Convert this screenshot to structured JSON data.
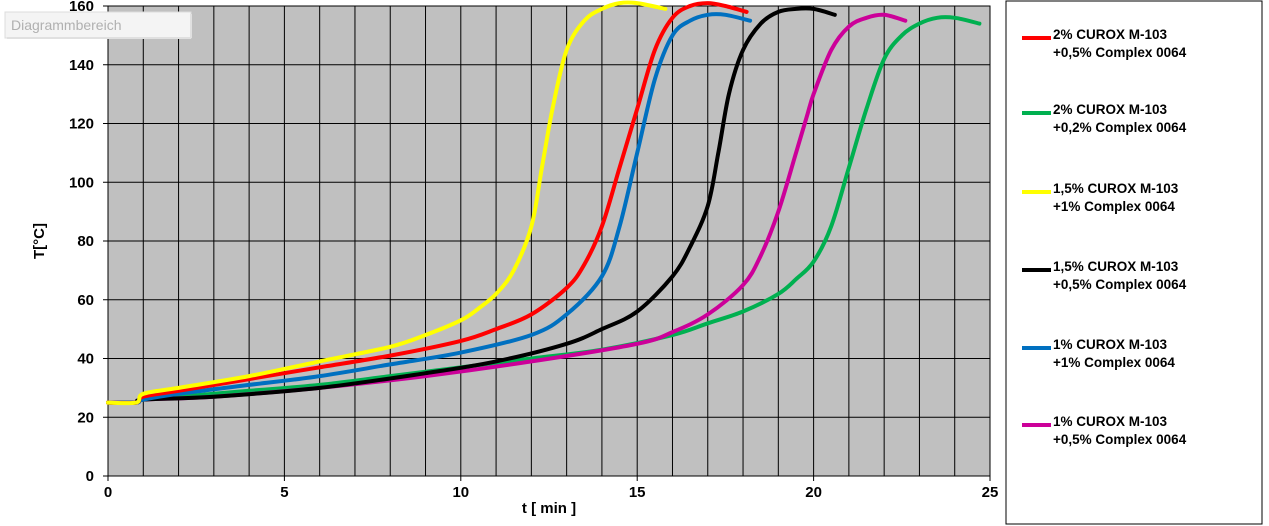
{
  "tooltip": "Diagrammbereich",
  "chart_data": {
    "type": "line",
    "xlabel": "t [ min ]",
    "ylabel": "T[°C]",
    "xlim": [
      0,
      25
    ],
    "ylim": [
      0,
      160
    ],
    "xticks": [
      0,
      5,
      10,
      15,
      20,
      25
    ],
    "yticks": [
      0,
      20,
      40,
      60,
      80,
      100,
      120,
      140,
      160
    ],
    "grid": true,
    "legend_position": "right",
    "plot_background": "#c0c0c0",
    "series": [
      {
        "name": "2% CUROX M-103",
        "name2": "+0,5% Complex 0064",
        "color": "#ff0000",
        "x": [
          0,
          0.8,
          1,
          2,
          4,
          6,
          8,
          10,
          11,
          12,
          13,
          13.5,
          14,
          14.5,
          15,
          15.5,
          16,
          16.5,
          17,
          17.5,
          18.1
        ],
        "y": [
          25,
          25,
          27,
          29,
          33,
          37,
          41,
          46,
          50,
          55,
          64,
          72,
          85,
          105,
          125,
          145,
          156,
          160,
          161,
          160,
          158
        ]
      },
      {
        "name": "2% CUROX M-103",
        "name2": "+0,2%  Complex 0064",
        "color": "#00b050",
        "x": [
          0,
          0.8,
          1,
          2,
          4,
          6,
          8,
          10,
          12,
          14,
          16,
          17,
          18,
          19,
          19.5,
          20,
          20.5,
          21,
          21.5,
          22,
          22.5,
          23,
          23.5,
          24,
          24.7
        ],
        "y": [
          25,
          25,
          26,
          27,
          29,
          31,
          34,
          37,
          40,
          43,
          48,
          52,
          56,
          62,
          67,
          73,
          85,
          105,
          125,
          142,
          150,
          154,
          156,
          156,
          154
        ]
      },
      {
        "name": "1,5% CUROX M-103",
        "name2": "+1% Complex 0064",
        "color": "#ffff00",
        "x": [
          0,
          0.8,
          1,
          2,
          4,
          6,
          8,
          9,
          10,
          10.5,
          11,
          11.5,
          12,
          12.3,
          12.6,
          13,
          13.5,
          14,
          14.5,
          15,
          15.8
        ],
        "y": [
          25,
          25,
          28,
          30,
          34,
          39,
          44,
          48,
          53,
          57,
          62,
          70,
          85,
          105,
          125,
          145,
          155,
          159,
          161,
          161,
          159
        ]
      },
      {
        "name": "1,5% CUROX M-103",
        "name2": "+0,5% Complex 0064",
        "color": "#000000",
        "x": [
          0,
          0.8,
          1,
          3,
          6,
          9,
          11,
          13,
          14,
          15,
          16,
          16.5,
          17,
          17.3,
          17.6,
          18,
          18.5,
          19,
          19.5,
          20,
          20.6
        ],
        "y": [
          25,
          25,
          26,
          27,
          30,
          35,
          39,
          45,
          50,
          56,
          68,
          78,
          92,
          110,
          130,
          145,
          154,
          158,
          159,
          159,
          157
        ]
      },
      {
        "name": "1% CUROX M-103",
        "name2": "+1% Complex 0064",
        "color": "#0070c0",
        "x": [
          0,
          0.8,
          1,
          2,
          4,
          6,
          8,
          10,
          12,
          13,
          14,
          14.5,
          15,
          15.5,
          16,
          16.5,
          17,
          17.5,
          18.2
        ],
        "y": [
          25,
          25,
          26,
          28,
          31,
          34,
          38,
          42,
          48,
          55,
          68,
          85,
          110,
          135,
          150,
          155,
          157,
          157,
          155
        ]
      },
      {
        "name": "1% CUROX M-103",
        "name2": "+0,5% Complex 0064",
        "color": "#cc0099",
        "x": [
          0,
          0.8,
          1,
          3,
          6,
          9,
          12,
          15,
          16,
          17,
          18,
          18.5,
          19,
          19.5,
          19.8,
          20,
          20.5,
          21,
          21.5,
          22,
          22.6
        ],
        "y": [
          25,
          25,
          26,
          27,
          30,
          34,
          39,
          45,
          49,
          55,
          65,
          75,
          90,
          110,
          122,
          130,
          145,
          153,
          156,
          157,
          155
        ]
      }
    ]
  }
}
